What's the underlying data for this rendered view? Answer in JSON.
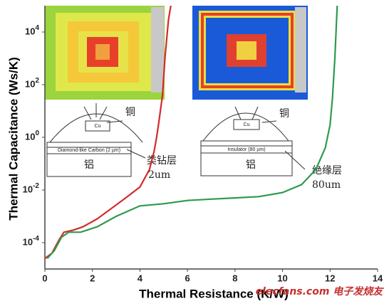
{
  "chart_data": {
    "type": "line",
    "log_y": true,
    "xlabel": "Thermal Resistance (K/W)",
    "ylabel": "Thermal Capacitance (Ws/K)",
    "xlim": [
      0,
      14
    ],
    "xticks": [
      0,
      2,
      4,
      6,
      8,
      10,
      12,
      14
    ],
    "ylim": [
      1e-05,
      100000
    ],
    "yticks": [
      {
        "value": 0.0001,
        "label": "10^-4"
      },
      {
        "value": 0.01,
        "label": "10^-2"
      },
      {
        "value": 1,
        "label": "10^0"
      },
      {
        "value": 100,
        "label": "10^2"
      },
      {
        "value": 10000,
        "label": "10^4"
      }
    ],
    "series": [
      {
        "color": "#d42a2a",
        "x": [
          0.0,
          0.3,
          0.6,
          0.8,
          1.2,
          1.6,
          2.2,
          2.8,
          3.4,
          4.0,
          4.4,
          4.6,
          4.7,
          4.8,
          4.95,
          5.05,
          5.2,
          5.3
        ],
        "values": [
          2.5e-05,
          4e-05,
          0.00013,
          0.00025,
          0.0003,
          0.0004,
          0.0008,
          0.002,
          0.005,
          0.013,
          0.06,
          0.3,
          1,
          4,
          40,
          1000,
          30000,
          100000
        ]
      },
      {
        "color": "#2e9a4e",
        "x": [
          0.1,
          0.4,
          0.7,
          1.0,
          1.5,
          2.2,
          3.0,
          4.0,
          5.0,
          6.0,
          7.0,
          8.0,
          9.0,
          10.0,
          10.8,
          11.4,
          11.8,
          12.0,
          12.1,
          12.2,
          12.3
        ],
        "values": [
          2.5e-05,
          5e-05,
          0.00016,
          0.00025,
          0.00025,
          0.0004,
          0.001,
          0.0025,
          0.003,
          0.004,
          0.0045,
          0.005,
          0.0056,
          0.008,
          0.016,
          0.06,
          0.4,
          3,
          30,
          1000,
          100000
        ]
      }
    ],
    "annotations": {
      "left_cu": "铜",
      "left_layer": "类钻层",
      "left_thickness": "2um",
      "left_al": "铝",
      "right_cu": "铜",
      "right_layer": "绝缘层",
      "right_thickness": "80um",
      "right_al": "铝",
      "left_cu_label": "Cu",
      "left_film": "Diamond-like Carbon (2 µm)",
      "right_cu_label": "Cu",
      "right_film": "Insulator (80 µm)",
      "watermark": "elecfans.com 电子发烧友"
    }
  }
}
